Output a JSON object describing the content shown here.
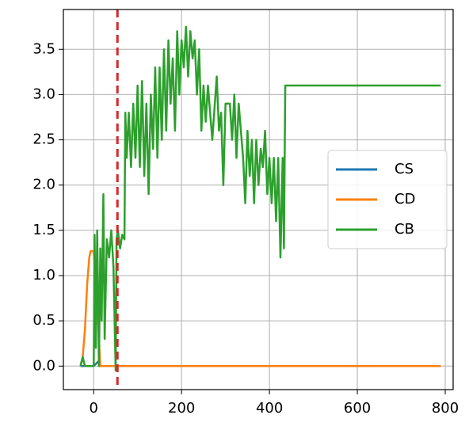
{
  "chart_data": {
    "type": "line",
    "xlim": [
      -69,
      818
    ],
    "ylim": [
      -0.26,
      3.94
    ],
    "xticks": [
      0,
      200,
      400,
      600,
      800
    ],
    "yticks": [
      {
        "value": 0,
        "label": "0.0"
      },
      0.5,
      {
        "value": 1,
        "label": "1.0"
      },
      1.5,
      {
        "value": 2,
        "label": "2.0"
      },
      2.5,
      {
        "value": 3,
        "label": "3.0"
      },
      3.5
    ],
    "grid": true,
    "legend": "center right",
    "vline": {
      "x": 54,
      "color": "#d62728"
    },
    "series": [
      {
        "name": "CS",
        "color": "#1f77b4",
        "x": [
          -30,
          0,
          10,
          15,
          790
        ],
        "values": [
          0,
          0,
          0.05,
          0,
          0
        ]
      },
      {
        "name": "CD",
        "color": "#ff7f0e",
        "x": [
          -30,
          -25,
          -20,
          -15,
          -10,
          -7,
          0,
          10,
          15,
          790
        ],
        "values": [
          0,
          0.1,
          0.4,
          0.9,
          1.2,
          1.27,
          1.27,
          0.5,
          0,
          0
        ]
      },
      {
        "name": "CB",
        "color": "#2ca02c",
        "x": [
          -30,
          -25,
          -20,
          0,
          2,
          5,
          8,
          12,
          15,
          18,
          22,
          25,
          30,
          35,
          40,
          45,
          50,
          52,
          55,
          60,
          65,
          70,
          72,
          75,
          80,
          85,
          90,
          95,
          100,
          105,
          110,
          115,
          120,
          125,
          130,
          135,
          140,
          145,
          150,
          155,
          160,
          165,
          170,
          175,
          180,
          185,
          190,
          195,
          200,
          205,
          210,
          215,
          220,
          225,
          230,
          235,
          240,
          245,
          250,
          255,
          260,
          270,
          280,
          285,
          290,
          295,
          300,
          310,
          315,
          320,
          325,
          330,
          340,
          345,
          350,
          355,
          360,
          365,
          370,
          375,
          380,
          385,
          390,
          395,
          400,
          405,
          410,
          415,
          420,
          425,
          430,
          433,
          436,
          790
        ],
        "values": [
          0,
          0.1,
          0,
          0,
          1.45,
          0.2,
          1.5,
          0,
          1.3,
          0.5,
          1.9,
          0.3,
          1.4,
          1.2,
          1.5,
          1.1,
          -0.05,
          1.4,
          1.5,
          1.3,
          1.45,
          1.4,
          2.8,
          2.3,
          2.8,
          2.2,
          2.9,
          2.3,
          3.1,
          2.2,
          3.15,
          2.1,
          2.9,
          1.9,
          3.0,
          2.4,
          3.3,
          2.3,
          3.3,
          2.5,
          3.5,
          2.6,
          3.6,
          2.9,
          3.4,
          2.6,
          3.7,
          3.0,
          3.6,
          3.3,
          3.75,
          3.2,
          3.7,
          3.4,
          3.6,
          3.0,
          3.5,
          2.6,
          3.1,
          2.7,
          3.1,
          2.5,
          3.2,
          2.6,
          2.8,
          2.0,
          2.9,
          2.9,
          2.5,
          3.0,
          2.3,
          2.9,
          2.3,
          1.8,
          2.6,
          2.1,
          2.5,
          1.8,
          2.5,
          2.0,
          2.4,
          2.2,
          2.6,
          1.9,
          2.3,
          1.8,
          2.3,
          1.6,
          2.3,
          1.2,
          2.3,
          1.3,
          3.1,
          3.1
        ]
      }
    ]
  }
}
